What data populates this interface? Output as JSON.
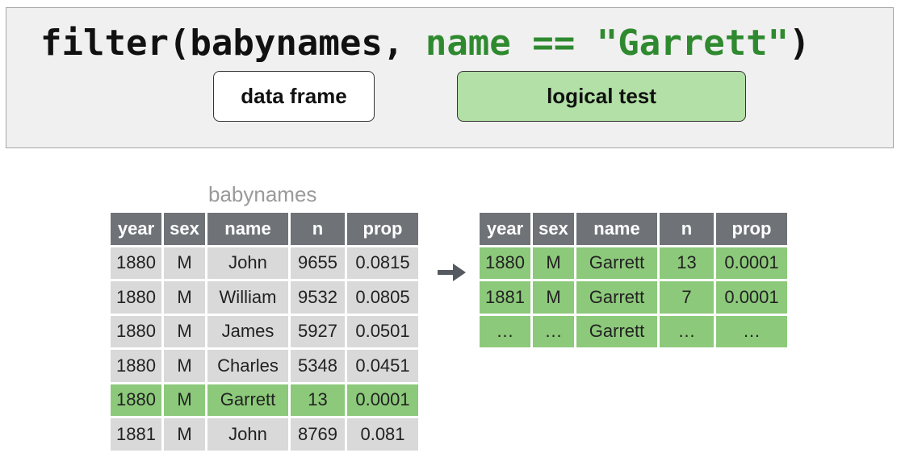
{
  "code": {
    "fn": "filter(babynames, ",
    "arg": "name == \"Garrett\"",
    "close": ")"
  },
  "labels": {
    "data_frame": "data frame",
    "logical_test": "logical test"
  },
  "source_table": {
    "caption": "babynames",
    "columns": [
      "year",
      "sex",
      "name",
      "n",
      "prop"
    ],
    "rows": [
      [
        "1880",
        "M",
        "John",
        "9655",
        "0.0815"
      ],
      [
        "1880",
        "M",
        "William",
        "9532",
        "0.0805"
      ],
      [
        "1880",
        "M",
        "James",
        "5927",
        "0.0501"
      ],
      [
        "1880",
        "M",
        "Charles",
        "5348",
        "0.0451"
      ],
      [
        "1880",
        "M",
        "Garrett",
        "13",
        "0.0001"
      ],
      [
        "1881",
        "M",
        "John",
        "8769",
        "0.081"
      ]
    ],
    "highlighted_row": 4
  },
  "result_table": {
    "columns": [
      "year",
      "sex",
      "name",
      "n",
      "prop"
    ],
    "rows": [
      [
        "1880",
        "M",
        "Garrett",
        "13",
        "0.0001"
      ],
      [
        "1881",
        "M",
        "Garrett",
        "7",
        "0.0001"
      ],
      [
        "…",
        "…",
        "Garrett",
        "…",
        "…"
      ]
    ]
  },
  "colors": {
    "highlight": "#8cc97a",
    "logical_test_fill": "#b2e0a6",
    "code_argument": "#2f8a2f",
    "header": "#6f7378",
    "cell": "#d9d9d9"
  }
}
